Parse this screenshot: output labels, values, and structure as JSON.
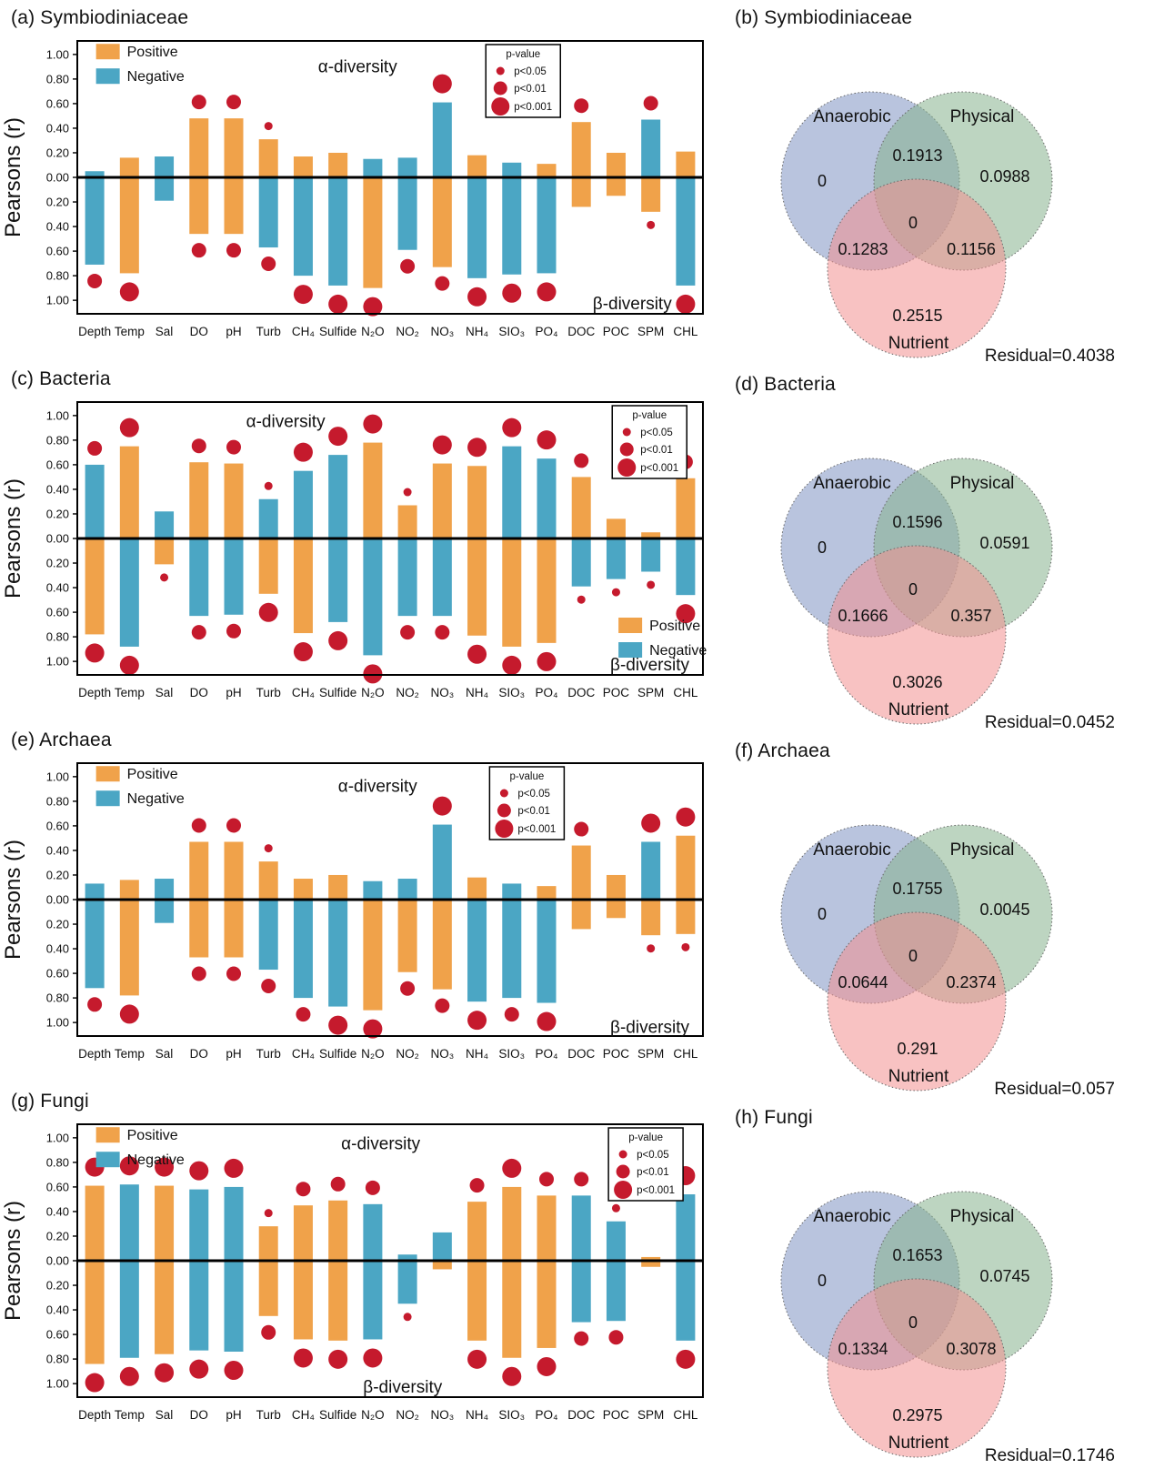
{
  "colors": {
    "positive": "#F0A24A",
    "negative": "#4BA6C4",
    "dot": "#C51A2D",
    "venn_anaerobic": "#8094C3",
    "venn_physical": "#87B38E",
    "venn_nutrient": "#F29090",
    "text": "#111111"
  },
  "axis": {
    "ylabel": "Pearsons (r)",
    "ytick_labels": [
      "1.00",
      "0.80",
      "0.60",
      "0.40",
      "0.20",
      "0.00",
      "0.20",
      "0.40",
      "0.60",
      "0.80",
      "1.00"
    ],
    "ytick_values": [
      1.0,
      0.8,
      0.6,
      0.4,
      0.2,
      0.0,
      -0.2,
      -0.4,
      -0.6,
      -0.8,
      -1.0
    ]
  },
  "legend": {
    "positive_label": "Positive",
    "negative_label": "Negative",
    "pvalue_title": "p-value",
    "pvalue_levels": [
      "p<0.05",
      "p<0.01",
      "p<0.001"
    ]
  },
  "categories": [
    "Depth",
    "Temp",
    "Sal",
    "DO",
    "pH",
    "Turb",
    "CH₄",
    "Sulfide",
    "N₂O",
    "NO₂",
    "NO₃",
    "NH₄",
    "SIO₃",
    "PO₄",
    "DOC",
    "POC",
    "SPM",
    "CHL"
  ],
  "chart_data": [
    {
      "type": "bar",
      "panel": "a",
      "title": "(a) Symbiodiniaceae",
      "alpha_label": "α-diversity",
      "beta_label": "β-diversity",
      "ylim": [
        -1.11,
        1.11
      ],
      "alpha": [
        [
          0.05,
          "N",
          null
        ],
        [
          0.16,
          "P",
          null
        ],
        [
          0.17,
          "N",
          null
        ],
        [
          0.48,
          "P",
          "0.01"
        ],
        [
          0.48,
          "P",
          "0.01"
        ],
        [
          0.31,
          "P",
          "0.05"
        ],
        [
          0.17,
          "P",
          null
        ],
        [
          0.2,
          "P",
          null
        ],
        [
          0.15,
          "N",
          null
        ],
        [
          0.16,
          "N",
          null
        ],
        [
          0.61,
          "N",
          "0.001"
        ],
        [
          0.18,
          "P",
          null
        ],
        [
          0.12,
          "N",
          null
        ],
        [
          0.11,
          "P",
          null
        ],
        [
          0.45,
          "P",
          "0.01"
        ],
        [
          0.2,
          "P",
          null
        ],
        [
          0.47,
          "N",
          "0.01"
        ],
        [
          0.21,
          "P",
          null
        ]
      ],
      "beta": [
        [
          -0.71,
          "N",
          "0.01"
        ],
        [
          -0.78,
          "P",
          "0.001"
        ],
        [
          -0.19,
          "N",
          null
        ],
        [
          -0.46,
          "P",
          "0.01"
        ],
        [
          -0.46,
          "P",
          "0.01"
        ],
        [
          -0.57,
          "N",
          "0.01"
        ],
        [
          -0.8,
          "N",
          "0.001"
        ],
        [
          -0.88,
          "N",
          "0.001"
        ],
        [
          -0.9,
          "P",
          "0.001"
        ],
        [
          -0.59,
          "N",
          "0.01"
        ],
        [
          -0.73,
          "P",
          "0.01"
        ],
        [
          -0.82,
          "N",
          "0.001"
        ],
        [
          -0.79,
          "N",
          "0.001"
        ],
        [
          -0.78,
          "N",
          "0.001"
        ],
        [
          -0.24,
          "P",
          null
        ],
        [
          -0.15,
          "P",
          null
        ],
        [
          -0.28,
          "P",
          "0.05"
        ],
        [
          -0.88,
          "N",
          "0.001"
        ]
      ],
      "layout": {
        "posneg": {
          "pos": "top-left",
          "x": 0.03,
          "v": 0.99
        },
        "pval": {
          "x": 0.653
        },
        "alpha_text": {
          "x": 0.448,
          "v": 0.9
        },
        "beta_text": {
          "x": 0.887,
          "v": -1.03
        }
      }
    },
    {
      "type": "venn",
      "panel": "b",
      "title": "(b) Symbiodiniaceae",
      "sets": [
        "Anaerobic",
        "Physical",
        "Nutrient"
      ],
      "values": {
        "anaerobic": "0",
        "physical": "0.0988",
        "nutrient": "0.2515",
        "anaerobic_physical": "0.1913",
        "anaerobic_nutrient": "0.1283",
        "physical_nutrient": "0.1156",
        "center": "0"
      },
      "residual": "Residual=0.4038"
    },
    {
      "type": "bar",
      "panel": "c",
      "title": "(c) Bacteria",
      "alpha_label": "α-diversity",
      "beta_label": "β-diversity",
      "ylim": [
        -1.11,
        1.11
      ],
      "alpha": [
        [
          0.6,
          "N",
          "0.01"
        ],
        [
          0.75,
          "P",
          "0.001"
        ],
        [
          0.22,
          "N",
          null
        ],
        [
          0.62,
          "P",
          "0.01"
        ],
        [
          0.61,
          "P",
          "0.01"
        ],
        [
          0.32,
          "N",
          "0.05"
        ],
        [
          0.55,
          "N",
          "0.001"
        ],
        [
          0.68,
          "N",
          "0.001"
        ],
        [
          0.78,
          "P",
          "0.001"
        ],
        [
          0.27,
          "P",
          "0.05"
        ],
        [
          0.61,
          "P",
          "0.001"
        ],
        [
          0.59,
          "P",
          "0.001"
        ],
        [
          0.75,
          "N",
          "0.001"
        ],
        [
          0.65,
          "N",
          "0.001"
        ],
        [
          0.5,
          "P",
          "0.01"
        ],
        [
          0.16,
          "P",
          null
        ],
        [
          0.05,
          "P",
          null
        ],
        [
          0.49,
          "P",
          "0.01"
        ]
      ],
      "beta": [
        [
          -0.78,
          "P",
          "0.001"
        ],
        [
          -0.88,
          "N",
          "0.001"
        ],
        [
          -0.21,
          "P",
          "0.05"
        ],
        [
          -0.63,
          "N",
          "0.01"
        ],
        [
          -0.62,
          "N",
          "0.01"
        ],
        [
          -0.45,
          "P",
          "0.001"
        ],
        [
          -0.77,
          "P",
          "0.001"
        ],
        [
          -0.68,
          "N",
          "0.001"
        ],
        [
          -0.95,
          "N",
          "0.001"
        ],
        [
          -0.63,
          "N",
          "0.01"
        ],
        [
          -0.63,
          "N",
          "0.01"
        ],
        [
          -0.79,
          "P",
          "0.001"
        ],
        [
          -0.88,
          "P",
          "0.001"
        ],
        [
          -0.85,
          "P",
          "0.001"
        ],
        [
          -0.39,
          "N",
          "0.05"
        ],
        [
          -0.33,
          "N",
          "0.05"
        ],
        [
          -0.27,
          "N",
          "0.05"
        ],
        [
          -0.46,
          "N",
          "0.001"
        ]
      ],
      "layout": {
        "posneg": {
          "pos": "bottom-right",
          "x": 0.865,
          "v": -0.74
        },
        "pval": {
          "x": 0.855
        },
        "alpha_text": {
          "x": 0.333,
          "v": 0.95
        },
        "beta_text": {
          "x": 0.915,
          "v": -1.03
        }
      }
    },
    {
      "type": "venn",
      "panel": "d",
      "title": "(d) Bacteria",
      "sets": [
        "Anaerobic",
        "Physical",
        "Nutrient"
      ],
      "values": {
        "anaerobic": "0",
        "physical": "0.0591",
        "nutrient": "0.3026",
        "anaerobic_physical": "0.1596",
        "anaerobic_nutrient": "0.1666",
        "physical_nutrient": "0.357",
        "center": "0"
      },
      "residual": "Residual=0.0452"
    },
    {
      "type": "bar",
      "panel": "e",
      "title": "(e) Archaea",
      "alpha_label": "α-diversity",
      "beta_label": "β-diversity",
      "ylim": [
        -1.11,
        1.11
      ],
      "alpha": [
        [
          0.13,
          "N",
          null
        ],
        [
          0.16,
          "P",
          null
        ],
        [
          0.17,
          "N",
          null
        ],
        [
          0.47,
          "P",
          "0.01"
        ],
        [
          0.47,
          "P",
          "0.01"
        ],
        [
          0.31,
          "P",
          "0.05"
        ],
        [
          0.17,
          "P",
          null
        ],
        [
          0.2,
          "P",
          null
        ],
        [
          0.15,
          "N",
          null
        ],
        [
          0.17,
          "N",
          null
        ],
        [
          0.61,
          "N",
          "0.001"
        ],
        [
          0.18,
          "P",
          null
        ],
        [
          0.13,
          "N",
          null
        ],
        [
          0.11,
          "P",
          null
        ],
        [
          0.44,
          "P",
          "0.01"
        ],
        [
          0.2,
          "P",
          null
        ],
        [
          0.47,
          "N",
          "0.001"
        ],
        [
          0.52,
          "P",
          "0.001"
        ]
      ],
      "beta": [
        [
          -0.72,
          "N",
          "0.01"
        ],
        [
          -0.78,
          "P",
          "0.001"
        ],
        [
          -0.19,
          "N",
          null
        ],
        [
          -0.47,
          "P",
          "0.01"
        ],
        [
          -0.47,
          "P",
          "0.01"
        ],
        [
          -0.57,
          "N",
          "0.01"
        ],
        [
          -0.8,
          "N",
          "0.01"
        ],
        [
          -0.87,
          "N",
          "0.001"
        ],
        [
          -0.9,
          "P",
          "0.001"
        ],
        [
          -0.59,
          "P",
          "0.01"
        ],
        [
          -0.73,
          "P",
          "0.01"
        ],
        [
          -0.83,
          "N",
          "0.001"
        ],
        [
          -0.8,
          "N",
          "0.01"
        ],
        [
          -0.84,
          "N",
          "0.001"
        ],
        [
          -0.24,
          "P",
          null
        ],
        [
          -0.15,
          "P",
          null
        ],
        [
          -0.29,
          "P",
          "0.05"
        ],
        [
          -0.28,
          "P",
          "0.05"
        ]
      ],
      "layout": {
        "posneg": {
          "pos": "top-left",
          "x": 0.03,
          "v": 0.99
        },
        "pval": {
          "x": 0.659
        },
        "alpha_text": {
          "x": 0.48,
          "v": 0.92
        },
        "beta_text": {
          "x": 0.915,
          "v": -1.04
        }
      }
    },
    {
      "type": "venn",
      "panel": "f",
      "title": "(f) Archaea",
      "sets": [
        "Anaerobic",
        "Physical",
        "Nutrient"
      ],
      "values": {
        "anaerobic": "0",
        "physical": "0.0045",
        "nutrient": "0.291",
        "anaerobic_physical": "0.1755",
        "anaerobic_nutrient": "0.0644",
        "physical_nutrient": "0.2374",
        "center": "0"
      },
      "residual": "Residual=0.057"
    },
    {
      "type": "bar",
      "panel": "g",
      "title": "(g) Fungi",
      "alpha_label": "α-diversity",
      "beta_label": "β-diversity",
      "ylim": [
        -1.11,
        1.11
      ],
      "alpha": [
        [
          0.61,
          "P",
          "0.001"
        ],
        [
          0.62,
          "N",
          "0.001"
        ],
        [
          0.61,
          "P",
          "0.001"
        ],
        [
          0.58,
          "N",
          "0.001"
        ],
        [
          0.6,
          "N",
          "0.001"
        ],
        [
          0.28,
          "P",
          "0.05"
        ],
        [
          0.45,
          "P",
          "0.01"
        ],
        [
          0.49,
          "P",
          "0.01"
        ],
        [
          0.46,
          "N",
          "0.01"
        ],
        [
          0.05,
          "N",
          null
        ],
        [
          0.23,
          "N",
          null
        ],
        [
          0.48,
          "P",
          "0.01"
        ],
        [
          0.6,
          "P",
          "0.001"
        ],
        [
          0.53,
          "P",
          "0.01"
        ],
        [
          0.53,
          "N",
          "0.01"
        ],
        [
          0.32,
          "N",
          "0.05"
        ],
        [
          0.03,
          "P",
          null
        ],
        [
          0.54,
          "N",
          "0.001"
        ]
      ],
      "beta": [
        [
          -0.84,
          "P",
          "0.001"
        ],
        [
          -0.79,
          "N",
          "0.001"
        ],
        [
          -0.76,
          "P",
          "0.001"
        ],
        [
          -0.73,
          "N",
          "0.001"
        ],
        [
          -0.74,
          "N",
          "0.001"
        ],
        [
          -0.45,
          "P",
          "0.01"
        ],
        [
          -0.64,
          "P",
          "0.001"
        ],
        [
          -0.65,
          "P",
          "0.001"
        ],
        [
          -0.64,
          "N",
          "0.001"
        ],
        [
          -0.35,
          "N",
          "0.05"
        ],
        [
          -0.07,
          "P",
          null
        ],
        [
          -0.65,
          "P",
          "0.001"
        ],
        [
          -0.79,
          "P",
          "0.001"
        ],
        [
          -0.71,
          "P",
          "0.001"
        ],
        [
          -0.5,
          "N",
          "0.01"
        ],
        [
          -0.49,
          "N",
          "0.01"
        ],
        [
          -0.05,
          "P",
          null
        ],
        [
          -0.65,
          "N",
          "0.001"
        ]
      ],
      "layout": {
        "posneg": {
          "pos": "top-left",
          "x": 0.03,
          "v": 0.99
        },
        "pval": {
          "x": 0.849
        },
        "alpha_text": {
          "x": 0.485,
          "v": 0.95
        },
        "beta_text": {
          "x": 0.52,
          "v": -1.03
        }
      }
    },
    {
      "type": "venn",
      "panel": "h",
      "title": "(h) Fungi",
      "sets": [
        "Anaerobic",
        "Physical",
        "Nutrient"
      ],
      "values": {
        "anaerobic": "0",
        "physical": "0.0745",
        "nutrient": "0.2975",
        "anaerobic_physical": "0.1653",
        "anaerobic_nutrient": "0.1334",
        "physical_nutrient": "0.3078",
        "center": "0"
      },
      "residual": "Residual=0.1746"
    }
  ]
}
